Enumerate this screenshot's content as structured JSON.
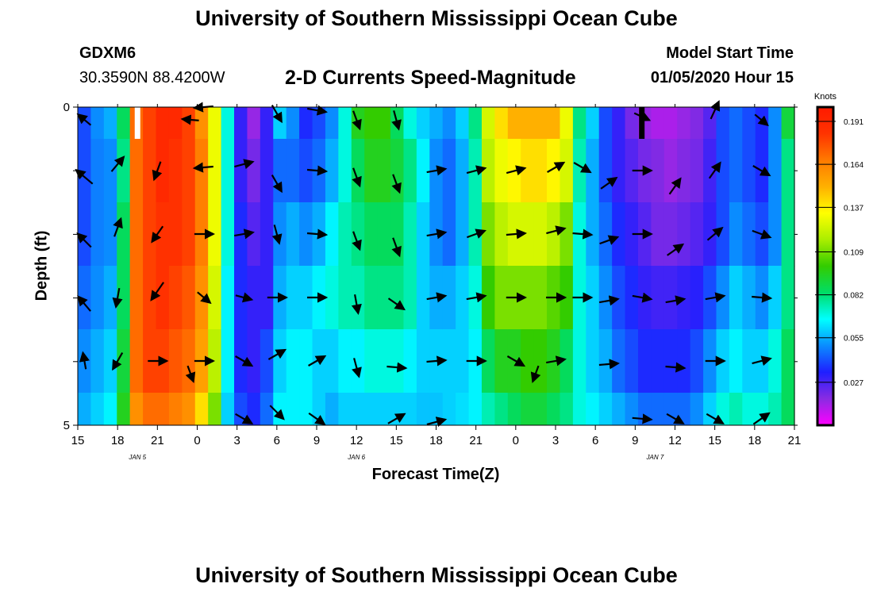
{
  "header": {
    "title": "University of Southern Mississippi Ocean Cube",
    "station": "GDXM6",
    "coords": "30.3590N 88.4200W",
    "subtitle": "2-D Currents Speed-Magnitude",
    "model_start_label": "Model Start Time",
    "model_start_value": "01/05/2020 Hour 15"
  },
  "footer": {
    "title": "University of Southern Mississippi Ocean Cube"
  },
  "colors": {
    "vector": "#000000",
    "colormap": [
      "#ff00ff",
      "#8a2be2",
      "#1f1fff",
      "#0a8cff",
      "#00ffff",
      "#00dd66",
      "#33cc00",
      "#aaee00",
      "#ffff00",
      "#ffb000",
      "#ff7a00",
      "#ff3300",
      "#ff1a00"
    ]
  },
  "chart_data": {
    "type": "heatmap",
    "title": "2-D Currents Speed-Magnitude",
    "xlabel": "Forecast Time(Z)",
    "ylabel": "Depth (ft)",
    "y_range": [
      0,
      5
    ],
    "y_tick_labels": [
      "0",
      "5"
    ],
    "x_range_hours": [
      0,
      54
    ],
    "x_tick_labels": [
      "15",
      "18",
      "21",
      "0",
      "3",
      "6",
      "9",
      "12",
      "15",
      "18",
      "21",
      "0",
      "3",
      "6",
      "9",
      "12",
      "15",
      "18",
      "21"
    ],
    "date_labels": [
      {
        "text": "JAN 5",
        "hour": 4.5
      },
      {
        "text": "JAN 6",
        "hour": 21
      },
      {
        "text": "JAN 7",
        "hour": 43.5
      }
    ],
    "depth_levels": [
      "0-0.5",
      "0.5-1.5",
      "1.5-2.5",
      "2.5-3.5",
      "3.5-4.5",
      "4.5-5"
    ],
    "colorbar": {
      "label": "Knots",
      "ticks": [
        "0.191",
        "0.164",
        "0.137",
        "0.109",
        "0.082",
        "0.055",
        "0.027"
      ],
      "min": 0.0,
      "max": 0.2
    },
    "missing_markers": [
      {
        "hour": 4.5,
        "depth": "0-0.5",
        "color": "#ffffff"
      },
      {
        "hour": 42.5,
        "depth": "0-0.5",
        "color": "#000000"
      }
    ],
    "speed_columns_knots": [
      [
        0.04,
        0.04,
        0.04,
        0.045,
        0.05,
        0.055
      ],
      [
        0.05,
        0.048,
        0.048,
        0.05,
        0.055,
        0.06
      ],
      [
        0.055,
        0.05,
        0.05,
        0.055,
        0.06,
        0.065
      ],
      [
        0.085,
        0.08,
        0.085,
        0.085,
        0.09,
        0.095
      ],
      [
        0.17,
        0.17,
        0.17,
        0.17,
        0.17,
        0.16
      ],
      [
        0.18,
        0.18,
        0.18,
        0.18,
        0.18,
        0.17
      ],
      [
        0.19,
        0.19,
        0.185,
        0.185,
        0.18,
        0.17
      ],
      [
        0.19,
        0.185,
        0.185,
        0.18,
        0.175,
        0.165
      ],
      [
        0.18,
        0.18,
        0.18,
        0.175,
        0.17,
        0.16
      ],
      [
        0.16,
        0.165,
        0.165,
        0.16,
        0.155,
        0.14
      ],
      [
        0.13,
        0.13,
        0.13,
        0.125,
        0.12,
        0.11
      ],
      [
        0.07,
        0.07,
        0.07,
        0.065,
        0.065,
        0.06
      ],
      [
        0.03,
        0.03,
        0.035,
        0.035,
        0.035,
        0.04
      ],
      [
        0.015,
        0.02,
        0.025,
        0.03,
        0.03,
        0.035
      ],
      [
        0.03,
        0.03,
        0.03,
        0.03,
        0.04,
        0.045
      ],
      [
        0.06,
        0.045,
        0.05,
        0.055,
        0.06,
        0.065
      ],
      [
        0.05,
        0.045,
        0.055,
        0.06,
        0.065,
        0.065
      ],
      [
        0.035,
        0.04,
        0.05,
        0.06,
        0.065,
        0.065
      ],
      [
        0.04,
        0.045,
        0.055,
        0.065,
        0.06,
        0.06
      ],
      [
        0.05,
        0.055,
        0.065,
        0.07,
        0.06,
        0.055
      ],
      [
        0.07,
        0.07,
        0.075,
        0.075,
        0.065,
        0.06
      ],
      [
        0.095,
        0.085,
        0.08,
        0.075,
        0.065,
        0.06
      ],
      [
        0.1,
        0.095,
        0.085,
        0.08,
        0.07,
        0.06
      ],
      [
        0.1,
        0.095,
        0.085,
        0.08,
        0.07,
        0.06
      ],
      [
        0.085,
        0.09,
        0.085,
        0.08,
        0.07,
        0.06
      ],
      [
        0.07,
        0.08,
        0.075,
        0.075,
        0.065,
        0.06
      ],
      [
        0.06,
        0.065,
        0.06,
        0.06,
        0.06,
        0.058
      ],
      [
        0.055,
        0.05,
        0.05,
        0.055,
        0.06,
        0.058
      ],
      [
        0.05,
        0.045,
        0.045,
        0.055,
        0.06,
        0.06
      ],
      [
        0.06,
        0.055,
        0.055,
        0.06,
        0.06,
        0.062
      ],
      [
        0.08,
        0.075,
        0.075,
        0.07,
        0.065,
        0.065
      ],
      [
        0.125,
        0.12,
        0.11,
        0.1,
        0.085,
        0.075
      ],
      [
        0.14,
        0.13,
        0.12,
        0.11,
        0.095,
        0.08
      ],
      [
        0.15,
        0.135,
        0.125,
        0.11,
        0.095,
        0.085
      ],
      [
        0.15,
        0.14,
        0.125,
        0.11,
        0.1,
        0.09
      ],
      [
        0.15,
        0.14,
        0.125,
        0.11,
        0.1,
        0.09
      ],
      [
        0.15,
        0.135,
        0.12,
        0.105,
        0.095,
        0.085
      ],
      [
        0.13,
        0.125,
        0.11,
        0.1,
        0.085,
        0.08
      ],
      [
        0.08,
        0.075,
        0.07,
        0.07,
        0.07,
        0.07
      ],
      [
        0.06,
        0.055,
        0.055,
        0.06,
        0.06,
        0.065
      ],
      [
        0.04,
        0.04,
        0.045,
        0.05,
        0.055,
        0.06
      ],
      [
        0.03,
        0.03,
        0.035,
        0.04,
        0.045,
        0.055
      ],
      [
        0.02,
        0.025,
        0.03,
        0.035,
        0.04,
        0.05
      ],
      [
        0.015,
        0.02,
        0.025,
        0.03,
        0.035,
        0.045
      ],
      [
        0.012,
        0.018,
        0.02,
        0.028,
        0.035,
        0.045
      ],
      [
        0.012,
        0.015,
        0.02,
        0.028,
        0.035,
        0.045
      ],
      [
        0.015,
        0.018,
        0.022,
        0.03,
        0.035,
        0.045
      ],
      [
        0.018,
        0.02,
        0.025,
        0.032,
        0.04,
        0.05
      ],
      [
        0.025,
        0.028,
        0.03,
        0.04,
        0.05,
        0.06
      ],
      [
        0.04,
        0.04,
        0.04,
        0.05,
        0.06,
        0.07
      ],
      [
        0.045,
        0.045,
        0.05,
        0.06,
        0.065,
        0.075
      ],
      [
        0.04,
        0.04,
        0.045,
        0.055,
        0.06,
        0.07
      ],
      [
        0.035,
        0.035,
        0.04,
        0.05,
        0.06,
        0.07
      ],
      [
        0.05,
        0.05,
        0.05,
        0.06,
        0.07,
        0.075
      ],
      [
        0.09,
        0.08,
        0.08,
        0.08,
        0.085,
        0.085
      ]
    ],
    "vectors": [
      {
        "hour": 0.5,
        "depth": 0.2,
        "dir_deg": 310,
        "len": 0.7
      },
      {
        "hour": 0.5,
        "depth": 1.1,
        "dir_deg": 310,
        "len": 0.9
      },
      {
        "hour": 0.5,
        "depth": 2.1,
        "dir_deg": 315,
        "len": 0.8
      },
      {
        "hour": 0.5,
        "depth": 3.1,
        "dir_deg": 320,
        "len": 0.8
      },
      {
        "hour": 0.5,
        "depth": 4.0,
        "dir_deg": 350,
        "len": 0.7
      },
      {
        "hour": 3.0,
        "depth": 0.9,
        "dir_deg": 40,
        "len": 0.8
      },
      {
        "hour": 3.0,
        "depth": 1.9,
        "dir_deg": 20,
        "len": 0.8
      },
      {
        "hour": 3.0,
        "depth": 3.0,
        "dir_deg": 190,
        "len": 0.8
      },
      {
        "hour": 3.0,
        "depth": 4.0,
        "dir_deg": 210,
        "len": 0.8
      },
      {
        "hour": 6.0,
        "depth": 1.0,
        "dir_deg": 200,
        "len": 0.8
      },
      {
        "hour": 6.0,
        "depth": 2.0,
        "dir_deg": 215,
        "len": 0.8
      },
      {
        "hour": 6.0,
        "depth": 2.9,
        "dir_deg": 215,
        "len": 0.9
      },
      {
        "hour": 6.0,
        "depth": 4.0,
        "dir_deg": 90,
        "len": 0.8
      },
      {
        "hour": 8.5,
        "depth": 4.2,
        "dir_deg": 160,
        "len": 0.7
      },
      {
        "hour": 8.5,
        "depth": 0.2,
        "dir_deg": 275,
        "len": 0.7
      },
      {
        "hour": 9.5,
        "depth": 0.0,
        "dir_deg": 265,
        "len": 0.8
      },
      {
        "hour": 9.5,
        "depth": 0.95,
        "dir_deg": 265,
        "len": 0.8
      },
      {
        "hour": 9.5,
        "depth": 2.0,
        "dir_deg": 90,
        "len": 0.8
      },
      {
        "hour": 9.5,
        "depth": 3.0,
        "dir_deg": 130,
        "len": 0.7
      },
      {
        "hour": 9.5,
        "depth": 4.0,
        "dir_deg": 90,
        "len": 0.8
      },
      {
        "hour": 12.5,
        "depth": 0.9,
        "dir_deg": 75,
        "len": 0.8
      },
      {
        "hour": 12.5,
        "depth": 2.0,
        "dir_deg": 80,
        "len": 0.8
      },
      {
        "hour": 12.5,
        "depth": 3.0,
        "dir_deg": 105,
        "len": 0.7
      },
      {
        "hour": 12.5,
        "depth": 4.0,
        "dir_deg": 120,
        "len": 0.8
      },
      {
        "hour": 12.5,
        "depth": 4.9,
        "dir_deg": 120,
        "len": 0.8
      },
      {
        "hour": 15.0,
        "depth": 0.1,
        "dir_deg": 150,
        "len": 0.8
      },
      {
        "hour": 15.0,
        "depth": 1.2,
        "dir_deg": 150,
        "len": 0.8
      },
      {
        "hour": 15.0,
        "depth": 2.0,
        "dir_deg": 165,
        "len": 0.8
      },
      {
        "hour": 15.0,
        "depth": 3.0,
        "dir_deg": 90,
        "len": 0.8
      },
      {
        "hour": 15.0,
        "depth": 3.9,
        "dir_deg": 60,
        "len": 0.8
      },
      {
        "hour": 15.0,
        "depth": 4.8,
        "dir_deg": 135,
        "len": 0.8
      },
      {
        "hour": 18.0,
        "depth": 0.05,
        "dir_deg": 100,
        "len": 0.8
      },
      {
        "hour": 18.0,
        "depth": 1.0,
        "dir_deg": 95,
        "len": 0.8
      },
      {
        "hour": 18.0,
        "depth": 2.0,
        "dir_deg": 95,
        "len": 0.8
      },
      {
        "hour": 18.0,
        "depth": 3.0,
        "dir_deg": 90,
        "len": 0.8
      },
      {
        "hour": 18.0,
        "depth": 4.0,
        "dir_deg": 60,
        "len": 0.8
      },
      {
        "hour": 18.0,
        "depth": 4.9,
        "dir_deg": 125,
        "len": 0.8
      },
      {
        "hour": 21.0,
        "depth": 0.2,
        "dir_deg": 160,
        "len": 0.8
      },
      {
        "hour": 21.0,
        "depth": 1.1,
        "dir_deg": 160,
        "len": 0.8
      },
      {
        "hour": 21.0,
        "depth": 2.1,
        "dir_deg": 160,
        "len": 0.8
      },
      {
        "hour": 21.0,
        "depth": 3.1,
        "dir_deg": 170,
        "len": 0.8
      },
      {
        "hour": 21.0,
        "depth": 4.1,
        "dir_deg": 165,
        "len": 0.8
      },
      {
        "hour": 24.0,
        "depth": 0.2,
        "dir_deg": 165,
        "len": 0.8
      },
      {
        "hour": 24.0,
        "depth": 1.2,
        "dir_deg": 160,
        "len": 0.8
      },
      {
        "hour": 24.0,
        "depth": 2.2,
        "dir_deg": 160,
        "len": 0.8
      },
      {
        "hour": 24.0,
        "depth": 3.1,
        "dir_deg": 125,
        "len": 0.8
      },
      {
        "hour": 24.0,
        "depth": 4.1,
        "dir_deg": 95,
        "len": 0.8
      },
      {
        "hour": 24.0,
        "depth": 4.9,
        "dir_deg": 60,
        "len": 0.8
      },
      {
        "hour": 27.0,
        "depth": 1.0,
        "dir_deg": 80,
        "len": 0.8
      },
      {
        "hour": 27.0,
        "depth": 2.0,
        "dir_deg": 80,
        "len": 0.8
      },
      {
        "hour": 27.0,
        "depth": 3.0,
        "dir_deg": 80,
        "len": 0.8
      },
      {
        "hour": 27.0,
        "depth": 4.0,
        "dir_deg": 85,
        "len": 0.8
      },
      {
        "hour": 27.0,
        "depth": 4.95,
        "dir_deg": 75,
        "len": 0.8
      },
      {
        "hour": 30.0,
        "depth": 1.0,
        "dir_deg": 75,
        "len": 0.8
      },
      {
        "hour": 30.0,
        "depth": 2.0,
        "dir_deg": 70,
        "len": 0.8
      },
      {
        "hour": 30.0,
        "depth": 3.0,
        "dir_deg": 80,
        "len": 0.8
      },
      {
        "hour": 30.0,
        "depth": 4.0,
        "dir_deg": 90,
        "len": 0.8
      },
      {
        "hour": 33.0,
        "depth": 1.0,
        "dir_deg": 75,
        "len": 0.8
      },
      {
        "hour": 33.0,
        "depth": 2.0,
        "dir_deg": 85,
        "len": 0.8
      },
      {
        "hour": 33.0,
        "depth": 3.0,
        "dir_deg": 90,
        "len": 0.8
      },
      {
        "hour": 33.0,
        "depth": 4.0,
        "dir_deg": 120,
        "len": 0.8
      },
      {
        "hour": 34.5,
        "depth": 4.2,
        "dir_deg": 200,
        "len": 0.7
      },
      {
        "hour": 36.0,
        "depth": 0.95,
        "dir_deg": 60,
        "len": 0.8
      },
      {
        "hour": 36.0,
        "depth": 1.95,
        "dir_deg": 75,
        "len": 0.8
      },
      {
        "hour": 36.0,
        "depth": 3.0,
        "dir_deg": 90,
        "len": 0.8
      },
      {
        "hour": 36.0,
        "depth": 4.0,
        "dir_deg": 80,
        "len": 0.8
      },
      {
        "hour": 38.0,
        "depth": 0.95,
        "dir_deg": 120,
        "len": 0.8
      },
      {
        "hour": 38.0,
        "depth": 2.0,
        "dir_deg": 95,
        "len": 0.8
      },
      {
        "hour": 38.0,
        "depth": 3.0,
        "dir_deg": 90,
        "len": 0.8
      },
      {
        "hour": 40.0,
        "depth": 1.2,
        "dir_deg": 55,
        "len": 0.8
      },
      {
        "hour": 40.0,
        "depth": 2.1,
        "dir_deg": 70,
        "len": 0.8
      },
      {
        "hour": 40.0,
        "depth": 3.05,
        "dir_deg": 80,
        "len": 0.8
      },
      {
        "hour": 40.0,
        "depth": 4.05,
        "dir_deg": 85,
        "len": 0.8
      },
      {
        "hour": 42.5,
        "depth": 0.15,
        "dir_deg": 115,
        "len": 0.7
      },
      {
        "hour": 42.5,
        "depth": 1.0,
        "dir_deg": 90,
        "len": 0.8
      },
      {
        "hour": 42.5,
        "depth": 2.0,
        "dir_deg": 90,
        "len": 0.8
      },
      {
        "hour": 42.5,
        "depth": 3.0,
        "dir_deg": 100,
        "len": 0.8
      },
      {
        "hour": 42.5,
        "depth": 4.9,
        "dir_deg": 95,
        "len": 0.8
      },
      {
        "hour": 45.0,
        "depth": 1.25,
        "dir_deg": 35,
        "len": 0.8
      },
      {
        "hour": 45.0,
        "depth": 2.25,
        "dir_deg": 55,
        "len": 0.8
      },
      {
        "hour": 45.0,
        "depth": 3.05,
        "dir_deg": 80,
        "len": 0.8
      },
      {
        "hour": 45.0,
        "depth": 4.1,
        "dir_deg": 95,
        "len": 0.8
      },
      {
        "hour": 45.0,
        "depth": 4.9,
        "dir_deg": 120,
        "len": 0.8
      },
      {
        "hour": 48.0,
        "depth": 0.05,
        "dir_deg": 25,
        "len": 0.8
      },
      {
        "hour": 48.0,
        "depth": 1.0,
        "dir_deg": 35,
        "len": 0.8
      },
      {
        "hour": 48.0,
        "depth": 2.0,
        "dir_deg": 50,
        "len": 0.8
      },
      {
        "hour": 48.0,
        "depth": 3.0,
        "dir_deg": 80,
        "len": 0.8
      },
      {
        "hour": 48.0,
        "depth": 4.0,
        "dir_deg": 90,
        "len": 0.8
      },
      {
        "hour": 48.0,
        "depth": 4.9,
        "dir_deg": 120,
        "len": 0.8
      },
      {
        "hour": 51.5,
        "depth": 0.2,
        "dir_deg": 130,
        "len": 0.7
      },
      {
        "hour": 51.5,
        "depth": 1.0,
        "dir_deg": 120,
        "len": 0.8
      },
      {
        "hour": 51.5,
        "depth": 2.0,
        "dir_deg": 110,
        "len": 0.8
      },
      {
        "hour": 51.5,
        "depth": 3.0,
        "dir_deg": 95,
        "len": 0.8
      },
      {
        "hour": 51.5,
        "depth": 4.0,
        "dir_deg": 75,
        "len": 0.8
      },
      {
        "hour": 51.5,
        "depth": 4.9,
        "dir_deg": 55,
        "len": 0.8
      }
    ]
  }
}
